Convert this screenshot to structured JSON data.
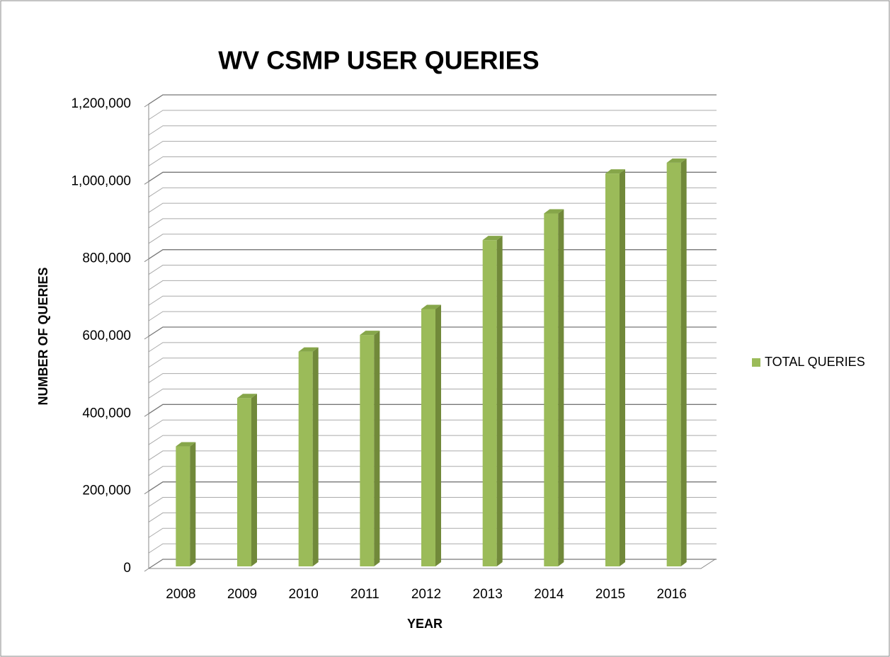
{
  "chart_data": {
    "type": "bar3d",
    "title": "WV CSMP USER QUERIES",
    "x_label": "YEAR",
    "y_label": "NUMBER OF QUERIES",
    "categories": [
      "2008",
      "2009",
      "2010",
      "2011",
      "2012",
      "2013",
      "2014",
      "2015",
      "2016"
    ],
    "series": [
      {
        "name": "TOTAL QUERIES",
        "color": "#9bbb59",
        "values": [
          310000,
          435000,
          555000,
          598000,
          665000,
          843000,
          912000,
          1015000,
          1043000
        ]
      }
    ],
    "ylim": [
      0,
      1200000
    ],
    "yticks": [
      0,
      {
        "value": 200000,
        "label": "200,000"
      },
      {
        "value": 400000,
        "label": "400,000"
      },
      {
        "value": 600000,
        "label": "600,000"
      },
      {
        "value": 800000,
        "label": "800,000"
      },
      {
        "value": 1000000,
        "label": "1,000,000"
      },
      {
        "value": 1200000,
        "label": "1,200,000"
      }
    ],
    "grid": true,
    "minor_grid_per_major": 5,
    "legend": "right"
  }
}
